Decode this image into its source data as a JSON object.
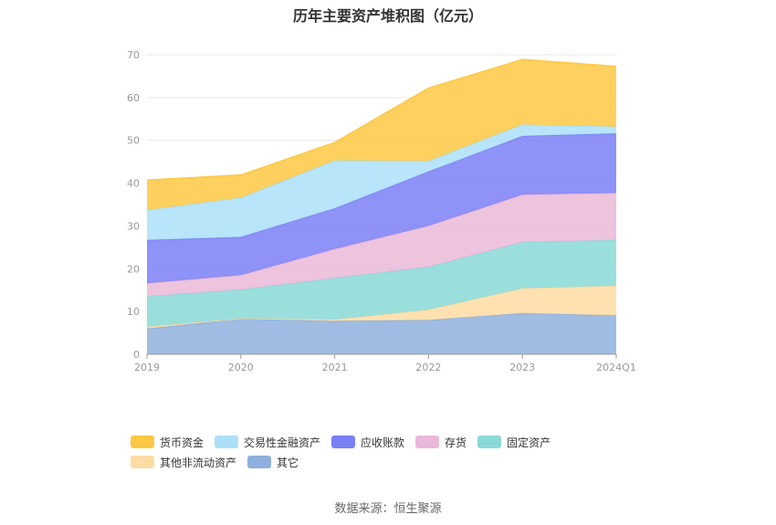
{
  "chart_data": {
    "type": "area",
    "stacked": true,
    "title": "历年主要资产堆积图（亿元）",
    "categories": [
      "2019",
      "2020",
      "2021",
      "2022",
      "2023",
      "2024Q1"
    ],
    "ylim": [
      0,
      70
    ],
    "yticks": [
      0,
      10,
      20,
      30,
      40,
      50,
      60,
      70
    ],
    "grid": true,
    "legend_position": "bottom",
    "series": [
      {
        "name": "其它",
        "color": "#8fb0de",
        "values": [
          6.0,
          8.3,
          7.8,
          8.0,
          9.6,
          9.1
        ]
      },
      {
        "name": "其他非流动资产",
        "color": "#ffdca3",
        "values": [
          0.4,
          0.1,
          0.3,
          2.4,
          5.8,
          6.9
        ]
      },
      {
        "name": "固定资产",
        "color": "#8ad9d6",
        "values": [
          7.1,
          6.7,
          9.7,
          10.0,
          10.8,
          10.7
        ]
      },
      {
        "name": "存货",
        "color": "#eab8d8",
        "values": [
          3.1,
          3.4,
          6.8,
          9.6,
          11.1,
          11.0
        ]
      },
      {
        "name": "应收账款",
        "color": "#7b7ff5",
        "values": [
          10.1,
          8.9,
          9.5,
          12.7,
          13.7,
          13.9
        ]
      },
      {
        "name": "交易性金融资产",
        "color": "#abe0f8",
        "values": [
          7.0,
          9.2,
          11.2,
          2.5,
          2.7,
          1.6
        ]
      },
      {
        "name": "货币资金",
        "color": "#fdc843",
        "values": [
          7.0,
          5.3,
          4.2,
          17.0,
          15.2,
          14.1
        ]
      }
    ]
  },
  "legend": {
    "items": [
      {
        "label": "货币资金",
        "color": "#fdc843"
      },
      {
        "label": "交易性金融资产",
        "color": "#abe0f8"
      },
      {
        "label": "应收账款",
        "color": "#7b7ff5"
      },
      {
        "label": "存货",
        "color": "#eab8d8"
      },
      {
        "label": "固定资产",
        "color": "#8ad9d6"
      },
      {
        "label": "其他非流动资产",
        "color": "#ffdca3"
      },
      {
        "label": "其它",
        "color": "#8fb0de"
      }
    ]
  },
  "source_note": "数据来源：恒生聚源"
}
